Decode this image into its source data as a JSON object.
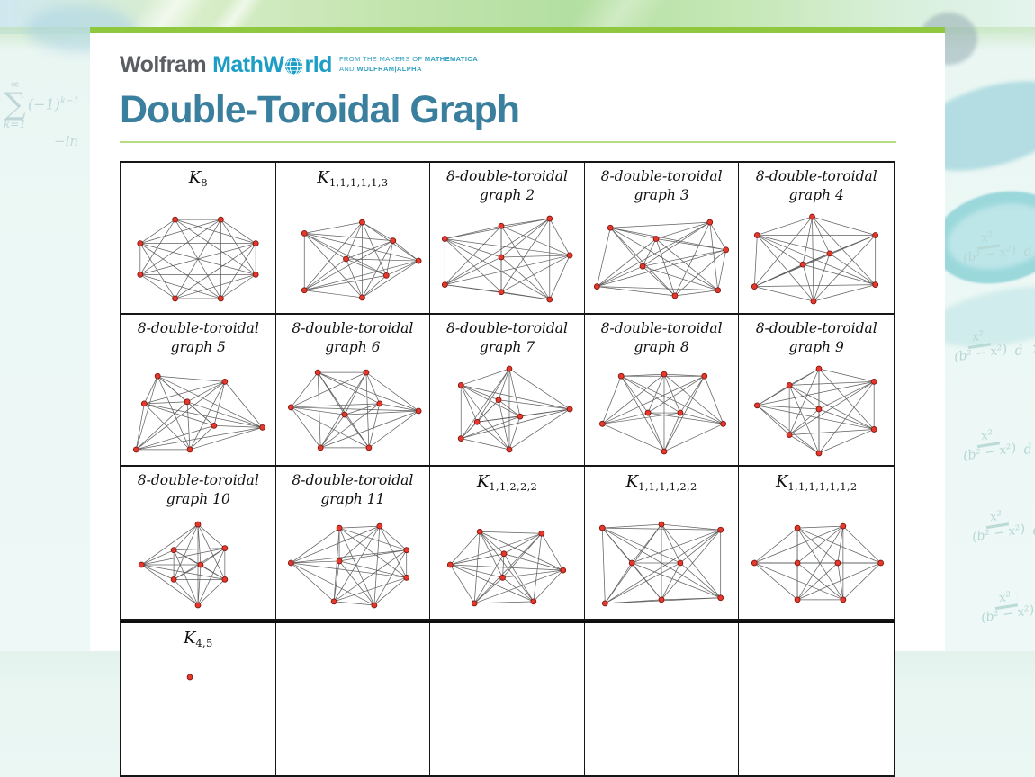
{
  "brand": {
    "wolfram": "Wolfram",
    "mathworld_left": "MathW",
    "mathworld_right": "rld",
    "tagline_line1_prefix": "FROM THE MAKERS OF ",
    "tagline_line1_brand": "MATHEMATICA",
    "tagline_line2_prefix": "AND ",
    "tagline_line2_brand": "WOLFRAM|ALPHA"
  },
  "page": {
    "title": "Double-Toroidal Graph"
  },
  "colors": {
    "accent_green_bar": "#8fc73e",
    "title_teal": "#3b7f9e",
    "logo_teal": "#1d9ec6",
    "hr_green": "#b9dd84",
    "vertex_fill": "#e6392b",
    "vertex_stroke": "#801510",
    "edge_gray": "#606060",
    "table_border": "#161616"
  },
  "background": {
    "sum_formula": {
      "upper": "∞",
      "sigma": "∑",
      "lower": "k=1",
      "body": "(−1)",
      "sup": "k−1",
      "ln": "−ln"
    },
    "integral_fragment": {
      "num": "x²",
      "den": "(b² − x²)",
      "dx": "d x"
    }
  },
  "chart_data": {
    "type": "table",
    "description": "Grid of 8-vertex double-toroidal graph drawings; red vertices, gray edges",
    "rows": [
      {
        "cells": [
          {
            "label_math": "K",
            "label_sub": "8",
            "edges": "complete",
            "vertices": [
              [
                33,
                7
              ],
              [
                67,
                7
              ],
              [
                93,
                33
              ],
              [
                93,
                67
              ],
              [
                67,
                93
              ],
              [
                33,
                93
              ],
              [
                7,
                67
              ],
              [
                7,
                33
              ]
            ]
          },
          {
            "label_math": "K",
            "label_sub": "1,1,1,1,1,3",
            "edges": "complete",
            "vertices": [
              [
                14,
                22
              ],
              [
                57,
                10
              ],
              [
                80,
                30
              ],
              [
                45,
                50
              ],
              [
                99,
                52
              ],
              [
                75,
                68
              ],
              [
                14,
                84
              ],
              [
                57,
                92
              ]
            ]
          },
          {
            "label_lines": [
              "8-double-toroidal",
              "graph 2"
            ],
            "edges": "complete",
            "vertices": [
              [
                4,
                28
              ],
              [
                46,
                14
              ],
              [
                82,
                6
              ],
              [
                46,
                48
              ],
              [
                97,
                46
              ],
              [
                4,
                78
              ],
              [
                46,
                86
              ],
              [
                82,
                94
              ]
            ]
          },
          {
            "label_lines": [
              "8-double-toroidal",
              "graph 3"
            ],
            "edges": "complete",
            "vertices": [
              [
                12,
                16
              ],
              [
                46,
                28
              ],
              [
                86,
                10
              ],
              [
                98,
                40
              ],
              [
                36,
                58
              ],
              [
                2,
                80
              ],
              [
                60,
                90
              ],
              [
                92,
                84
              ]
            ]
          },
          {
            "label_lines": [
              "8-double-toroidal",
              "graph 4"
            ],
            "edges": "complete",
            "vertices": [
              [
                47,
                4
              ],
              [
                6,
                24
              ],
              [
                94,
                24
              ],
              [
                60,
                44
              ],
              [
                40,
                56
              ],
              [
                4,
                80
              ],
              [
                94,
                78
              ],
              [
                48,
                96
              ]
            ]
          }
        ]
      },
      {
        "cells": [
          {
            "label_lines": [
              "8-double-toroidal",
              "graph 5"
            ],
            "edges": "complete",
            "vertices": [
              [
                20,
                12
              ],
              [
                70,
                18
              ],
              [
                10,
                42
              ],
              [
                42,
                40
              ],
              [
                62,
                66
              ],
              [
                98,
                68
              ],
              [
                4,
                92
              ],
              [
                44,
                92
              ]
            ]
          },
          {
            "label_lines": [
              "8-double-toroidal",
              "graph 6"
            ],
            "edges": "complete",
            "vertices": [
              [
                24,
                8
              ],
              [
                60,
                8
              ],
              [
                4,
                46
              ],
              [
                44,
                54
              ],
              [
                70,
                42
              ],
              [
                99,
                50
              ],
              [
                26,
                90
              ],
              [
                62,
                90
              ]
            ]
          },
          {
            "label_lines": [
              "8-double-toroidal",
              "graph 7"
            ],
            "edges": "complete",
            "vertices": [
              [
                52,
                4
              ],
              [
                16,
                22
              ],
              [
                44,
                38
              ],
              [
                28,
                62
              ],
              [
                60,
                56
              ],
              [
                97,
                48
              ],
              [
                16,
                80
              ],
              [
                52,
                92
              ]
            ]
          },
          {
            "label_lines": [
              "8-double-toroidal",
              "graph 8"
            ],
            "edges": "complete",
            "vertices": [
              [
                20,
                12
              ],
              [
                52,
                10
              ],
              [
                82,
                12
              ],
              [
                40,
                52
              ],
              [
                64,
                52
              ],
              [
                6,
                64
              ],
              [
                96,
                64
              ],
              [
                52,
                94
              ]
            ]
          },
          {
            "label_lines": [
              "8-double-toroidal",
              "graph 9"
            ],
            "edges": "complete",
            "vertices": [
              [
                52,
                4
              ],
              [
                30,
                22
              ],
              [
                93,
                18
              ],
              [
                6,
                44
              ],
              [
                52,
                48
              ],
              [
                30,
                76
              ],
              [
                93,
                70
              ],
              [
                52,
                96
              ]
            ]
          }
        ]
      },
      {
        "cells": [
          {
            "label_lines": [
              "8-double-toroidal",
              "graph 10"
            ],
            "edges": "complete",
            "vertices": [
              [
                50,
                6
              ],
              [
                32,
                34
              ],
              [
                70,
                32
              ],
              [
                8,
                50
              ],
              [
                52,
                50
              ],
              [
                32,
                66
              ],
              [
                70,
                66
              ],
              [
                50,
                94
              ]
            ]
          },
          {
            "label_lines": [
              "8-double-toroidal",
              "graph 11"
            ],
            "edges": "complete",
            "vertices": [
              [
                40,
                10
              ],
              [
                70,
                8
              ],
              [
                4,
                48
              ],
              [
                40,
                46
              ],
              [
                90,
                34
              ],
              [
                90,
                64
              ],
              [
                36,
                90
              ],
              [
                66,
                94
              ]
            ]
          },
          {
            "label_math": "K",
            "label_sub": "1,1,2,2,2",
            "edges": "complete",
            "vertices": [
              [
                30,
                14
              ],
              [
                76,
                16
              ],
              [
                8,
                50
              ],
              [
                48,
                38
              ],
              [
                92,
                56
              ],
              [
                47,
                64
              ],
              [
                26,
                92
              ],
              [
                70,
                90
              ]
            ]
          },
          {
            "label_math": "K",
            "label_sub": "1,1,1,1,2,2",
            "edges": "complete",
            "vertices": [
              [
                6,
                10
              ],
              [
                50,
                6
              ],
              [
                94,
                12
              ],
              [
                28,
                48
              ],
              [
                64,
                48
              ],
              [
                8,
                92
              ],
              [
                50,
                88
              ],
              [
                94,
                86
              ]
            ]
          },
          {
            "label_math": "K",
            "label_sub": "1,1,1,1,1,1,2",
            "edges": "complete",
            "vertices": [
              [
                36,
                10
              ],
              [
                70,
                8
              ],
              [
                4,
                48
              ],
              [
                36,
                48
              ],
              [
                66,
                48
              ],
              [
                98,
                48
              ],
              [
                36,
                88
              ],
              [
                70,
                88
              ]
            ]
          }
        ]
      },
      {
        "cells": [
          {
            "label_math": "K",
            "label_sub": "4,5",
            "edges": "none",
            "vertices": [
              [
                44,
                2
              ]
            ]
          },
          {
            "empty": true
          },
          {
            "empty": true
          },
          {
            "empty": true
          },
          {
            "empty": true
          }
        ]
      }
    ]
  }
}
